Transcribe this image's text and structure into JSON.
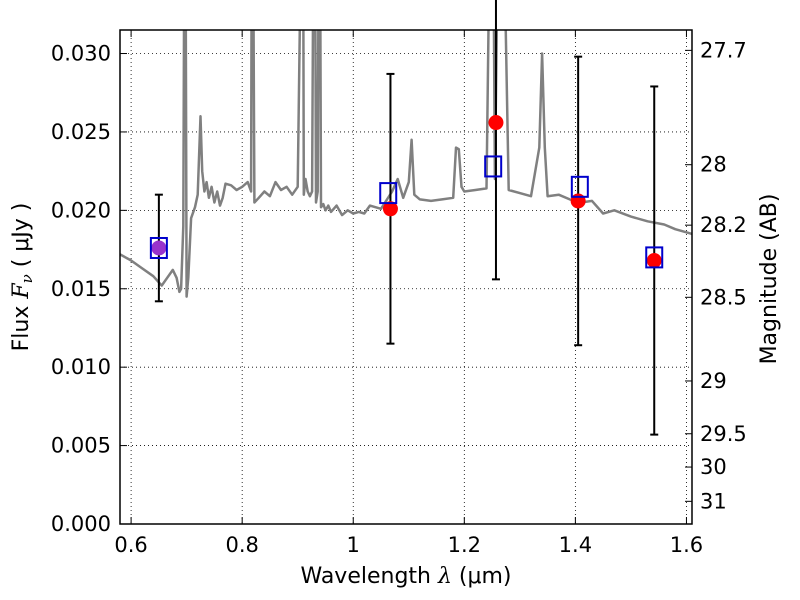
{
  "chart_data": {
    "type": "scatter",
    "title": "",
    "xlabel": {
      "prefix": "Wavelength  ",
      "symbol": "λ",
      "unit": " (μm)"
    },
    "ylabel": {
      "prefix": "Flux  ",
      "symbol": "F",
      "subscript": "ν",
      "unit": "  ( μJy )"
    },
    "y2label": "Magnitude (AB)",
    "xlim": [
      0.58,
      1.61
    ],
    "ylim": [
      0.0,
      0.0315
    ],
    "x_ticks": [
      0.6,
      0.8,
      1.0,
      1.2,
      1.4,
      1.6
    ],
    "x_tick_labels": [
      "0.6",
      "0.8",
      "1",
      "1.2",
      "1.4",
      "1.6"
    ],
    "y_ticks": [
      0.0,
      0.005,
      0.01,
      0.015,
      0.02,
      0.025,
      0.03
    ],
    "y_tick_labels": [
      "0.000",
      "0.005",
      "0.010",
      "0.015",
      "0.020",
      "0.025",
      "0.030"
    ],
    "y2_ticks": [
      27.7,
      28.0,
      28.2,
      28.5,
      29.0,
      29.5,
      30.0,
      31.0
    ],
    "y2_tick_labels": [
      "27.7",
      "28",
      "28.2",
      "28.5",
      "29",
      "29.5",
      "30",
      "31"
    ],
    "grid": true,
    "colors": {
      "model": "#808080",
      "observed": "#ff0000",
      "model_photometry": "#0000cc",
      "blended_point": "#9933cc",
      "errorbar": "#000000"
    },
    "model_spectrum": {
      "x": [
        0.58,
        0.6,
        0.62,
        0.64,
        0.655,
        0.665,
        0.675,
        0.682,
        0.687,
        0.69,
        0.694,
        0.697,
        0.7,
        0.703,
        0.708,
        0.715,
        0.72,
        0.725,
        0.728,
        0.732,
        0.736,
        0.74,
        0.745,
        0.75,
        0.755,
        0.76,
        0.765,
        0.77,
        0.78,
        0.79,
        0.8,
        0.81,
        0.816,
        0.818,
        0.822,
        0.83,
        0.84,
        0.85,
        0.86,
        0.87,
        0.88,
        0.89,
        0.9,
        0.905,
        0.909,
        0.911,
        0.914,
        0.918,
        0.922,
        0.926,
        0.93,
        0.933,
        0.936,
        0.939,
        0.942,
        0.946,
        0.95,
        0.955,
        0.96,
        0.97,
        0.98,
        0.99,
        1.0,
        1.01,
        1.02,
        1.03,
        1.05,
        1.07,
        1.08,
        1.09,
        1.1,
        1.105,
        1.11,
        1.12,
        1.14,
        1.16,
        1.18,
        1.185,
        1.19,
        1.195,
        1.2,
        1.22,
        1.24,
        1.25,
        1.255,
        1.265,
        1.28,
        1.3,
        1.32,
        1.335,
        1.34,
        1.345,
        1.35,
        1.37,
        1.39,
        1.41,
        1.43,
        1.45,
        1.47,
        1.5,
        1.53,
        1.56,
        1.58,
        1.6,
        1.61
      ],
      "y": [
        0.0172,
        0.0168,
        0.0163,
        0.0158,
        0.0152,
        0.0157,
        0.0162,
        0.0157,
        0.0148,
        0.015,
        0.019,
        0.05,
        0.0145,
        0.0157,
        0.0195,
        0.0202,
        0.021,
        0.026,
        0.0225,
        0.0212,
        0.0218,
        0.0208,
        0.0215,
        0.0205,
        0.0212,
        0.0203,
        0.0208,
        0.0217,
        0.0216,
        0.0213,
        0.0215,
        0.0218,
        0.0212,
        0.05,
        0.0205,
        0.0208,
        0.0212,
        0.0209,
        0.0218,
        0.0213,
        0.0215,
        0.021,
        0.0215,
        0.035,
        0.05,
        0.021,
        0.022,
        0.0212,
        0.0209,
        0.0212,
        0.05,
        0.0205,
        0.0212,
        0.05,
        0.0202,
        0.0204,
        0.02,
        0.0203,
        0.0199,
        0.0203,
        0.0197,
        0.02,
        0.0198,
        0.0199,
        0.0198,
        0.0203,
        0.0201,
        0.0212,
        0.022,
        0.0208,
        0.0218,
        0.0245,
        0.021,
        0.0207,
        0.0206,
        0.0207,
        0.0208,
        0.024,
        0.0239,
        0.0215,
        0.0212,
        0.0213,
        0.0214,
        0.05,
        0.022,
        0.05,
        0.0213,
        0.0211,
        0.0209,
        0.024,
        0.03,
        0.024,
        0.0209,
        0.021,
        0.0207,
        0.0205,
        0.0206,
        0.0198,
        0.02,
        0.0196,
        0.0193,
        0.0191,
        0.0188,
        0.0186,
        0.0185
      ]
    },
    "observations": [
      {
        "x": 0.65,
        "y": 0.0176,
        "yerr": 0.0034
      },
      {
        "x": 1.067,
        "y": 0.0201,
        "yerr": 0.0086
      },
      {
        "x": 1.257,
        "y": 0.0256,
        "yerr": 0.01
      },
      {
        "x": 1.405,
        "y": 0.0206,
        "yerr": 0.0092
      },
      {
        "x": 1.542,
        "y": 0.0168,
        "yerr": 0.0111
      }
    ],
    "model_photometry": [
      {
        "x": 0.65,
        "y": 0.0176
      },
      {
        "x": 1.063,
        "y": 0.0211
      },
      {
        "x": 1.252,
        "y": 0.0228
      },
      {
        "x": 1.408,
        "y": 0.0215
      },
      {
        "x": 1.542,
        "y": 0.017
      }
    ]
  }
}
